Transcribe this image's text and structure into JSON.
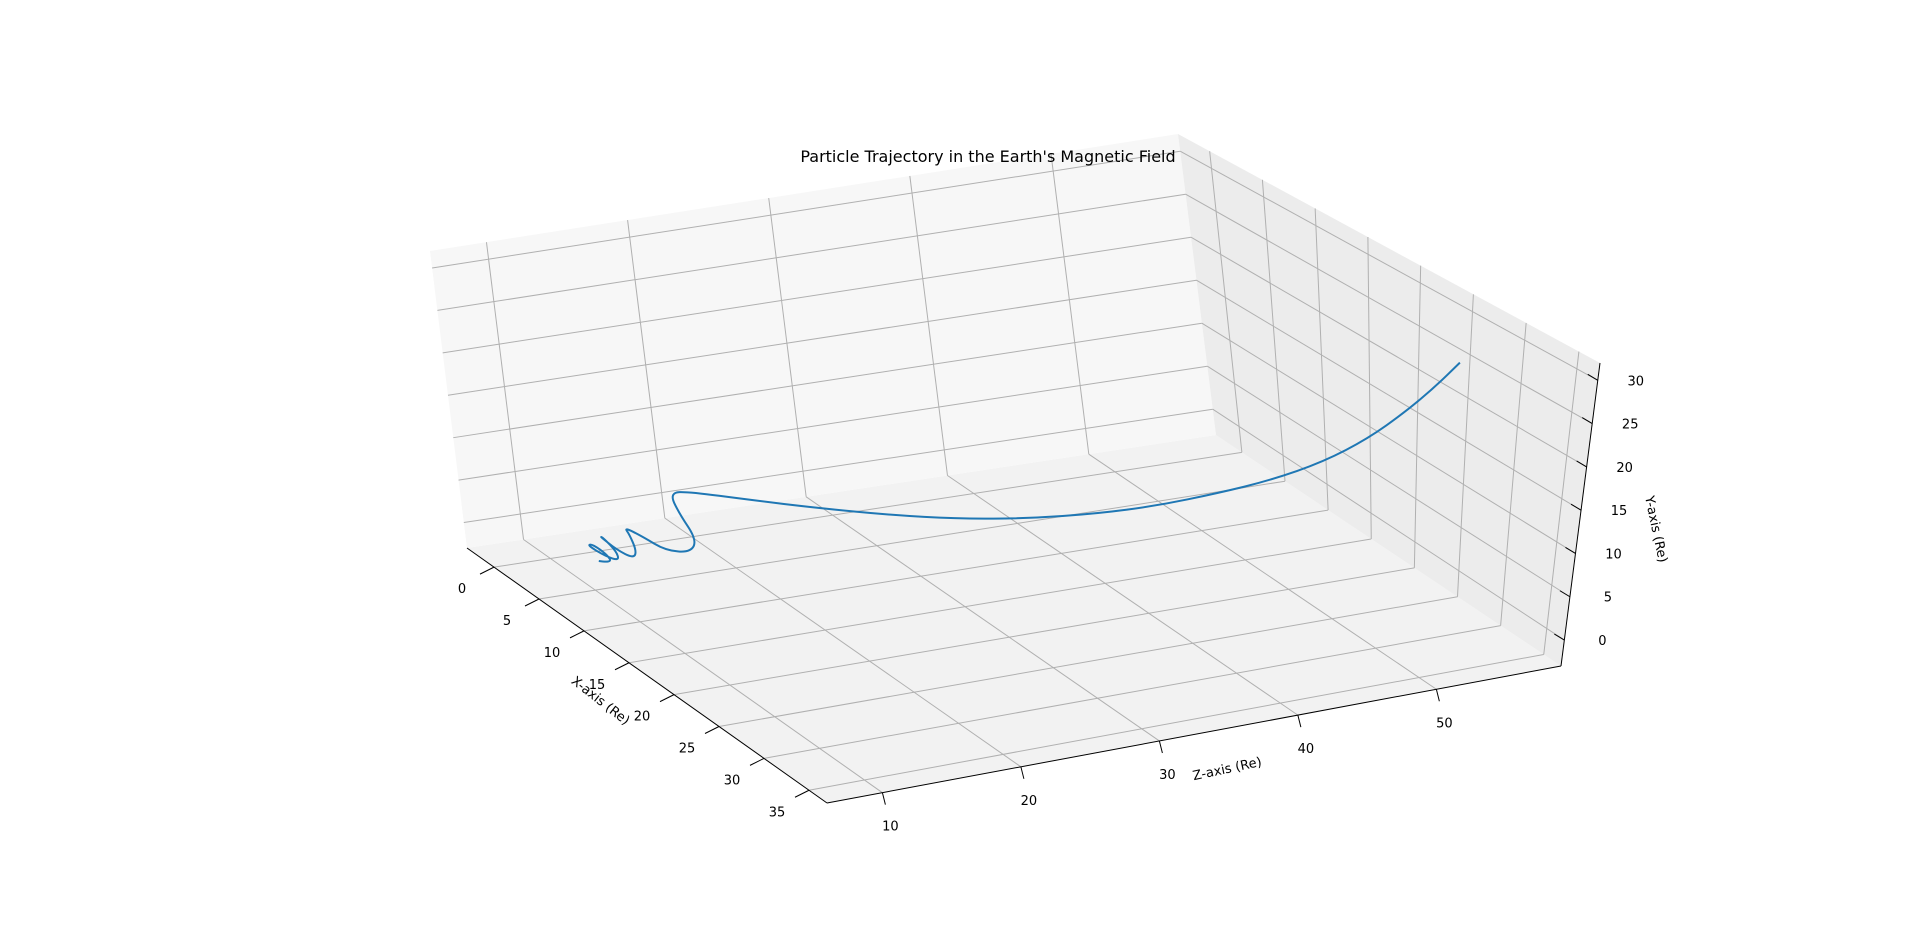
{
  "chart_data": {
    "type": "line",
    "projection": "3d",
    "title": "Particle Trajectory in the Earth's Magnetic Field",
    "xlabel": "X-axis (Re)",
    "ylabel": "Y-axis (Re)",
    "zlabel": "Z-axis (Re)",
    "xlim": [
      -3,
      37
    ],
    "ylim": [
      -3,
      32
    ],
    "zlim": [
      6,
      59
    ],
    "x_ticks": [
      0,
      5,
      10,
      15,
      20,
      25,
      30,
      35
    ],
    "y_ticks": [
      0,
      5,
      10,
      15,
      20,
      25,
      30
    ],
    "z_ticks": [
      10,
      20,
      30,
      40,
      50
    ],
    "grid": true,
    "line_color": "#1f77b4",
    "series": [
      {
        "x": [
          5,
          6.2,
          6,
          4.8,
          4.2,
          5.2,
          6.6,
          6.6,
          5.4,
          4.6,
          5.6,
          7.4,
          8,
          7.2,
          6,
          6.6,
          9,
          11.5,
          12.2,
          10.8,
          9.6,
          10.5,
          12,
          13.5,
          15,
          16.5,
          18,
          19.5,
          21,
          22.5,
          24,
          25.5,
          27,
          28.5,
          30,
          32.1
        ],
        "y": [
          0.3,
          0.9,
          1.7,
          2.2,
          1.6,
          0.9,
          1.4,
          2.5,
          3.2,
          2.8,
          1.8,
          2.1,
          3.5,
          4.8,
          4.6,
          3.8,
          3.8,
          5.4,
          7.4,
          9.5,
          11,
          11.5,
          10.8,
          9.8,
          9.0,
          8.5,
          8.5,
          9.0,
          10.0,
          11.5,
          13.2,
          15.5,
          18.5,
          22,
          25.5,
          29.5
        ],
        "z": [
          10.5,
          10.7,
          10.6,
          10.3,
          10.3,
          10.9,
          11.0,
          10.9,
          10.8,
          11.0,
          11.5,
          11.6,
          11.5,
          11.6,
          12.0,
          12.8,
          13.0,
          13.3,
          13.4,
          13.2,
          13.4,
          14.3,
          17.5,
          21.5,
          25.5,
          29.5,
          33.5,
          37.5,
          41.0,
          44.5,
          47.5,
          50.5,
          53.0,
          55.0,
          56.5,
          57.3
        ]
      }
    ]
  }
}
